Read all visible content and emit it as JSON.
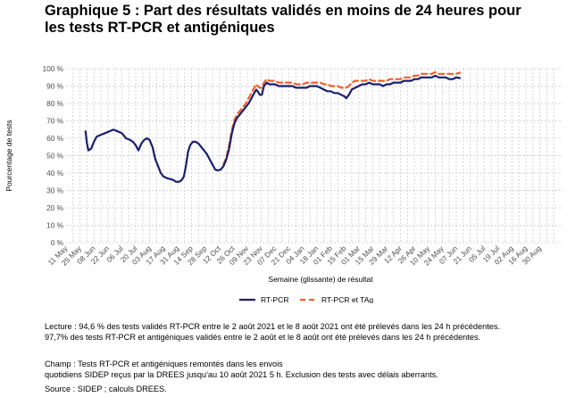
{
  "title_lines": [
    "Graphique 5 : Part des résultats validés en moins de 24 heures pour",
    "les tests RT-PCR et antigéniques"
  ],
  "notes": {
    "lecture": [
      "Lecture : 94,6 % des tests validés RT-PCR entre le 2 août 2021 et le 8 août 2021 ont été prélevés dans les 24 h précédentes.",
      "97,7% des tests RT-PCR et antigéniques validés entre le 2 août et le 8 août ont été prélevés dans les 24 h précédentes."
    ],
    "champ": [
      "Champ : Tests RT-PCR et antigéniques remontés dans les envois",
      "quotidiens SIDEP reçus par la DREES jusqu'au 10 août 2021 5 h. Exclusion des tests avec délais aberrants."
    ],
    "source": "Source : SIDEP ; calculs DREES."
  },
  "colors": {
    "rtpcr": "#1a1f6e",
    "rtpcr_tag": "#f0602b",
    "grid": "#d4d4d4"
  },
  "chart_data": {
    "type": "line",
    "xlabel": "Semaine (glissante) de résultat",
    "ylabel": "Pourcentage de tests",
    "ylim": [
      0,
      100
    ],
    "y_ticks": [
      "0 %",
      "10 %",
      "20 %",
      "30 %",
      "40 %",
      "50 %",
      "60 %",
      "70 %",
      "80 %",
      "90 %",
      "100 %"
    ],
    "x_ticks": [
      "11 May",
      "25 May",
      "08 Jun",
      "22 Jun",
      "06 Jul",
      "20 Jul",
      "03 Aug",
      "17 Aug",
      "31 Aug",
      "14 Sep",
      "28 Sep",
      "12 Oct",
      "26 Oct",
      "09 Nov",
      "23 Nov",
      "07 Dec",
      "21 Dec",
      "04 Jan",
      "18 Jan",
      "01 Feb",
      "15 Feb",
      "01 Mar",
      "15 Mar",
      "29 Mar",
      "12 Apr",
      "26 Apr",
      "10 May",
      "24 May",
      "07 Jun",
      "21 Jun",
      "05 Jul",
      "19 Jul",
      "02 Aug",
      "16 Aug",
      "30 Aug"
    ],
    "x_unit": "weeks since 11 May 2020 (tick i = 2*i weeks)",
    "grid": true,
    "legend_position": "bottom",
    "series": [
      {
        "name": "RT-PCR",
        "points": [
          [
            2.8,
            64
          ],
          [
            3.0,
            57
          ],
          [
            3.2,
            53
          ],
          [
            3.6,
            54
          ],
          [
            4.0,
            58
          ],
          [
            4.4,
            61
          ],
          [
            5.0,
            62
          ],
          [
            5.6,
            63
          ],
          [
            6.2,
            64
          ],
          [
            6.8,
            65
          ],
          [
            7.4,
            64
          ],
          [
            8.0,
            63
          ],
          [
            8.6,
            60
          ],
          [
            9.2,
            59
          ],
          [
            9.6,
            58
          ],
          [
            10.0,
            56
          ],
          [
            10.4,
            53
          ],
          [
            10.8,
            57
          ],
          [
            11.2,
            59
          ],
          [
            11.6,
            60
          ],
          [
            12.0,
            59
          ],
          [
            12.4,
            55
          ],
          [
            12.8,
            48
          ],
          [
            13.2,
            44
          ],
          [
            13.6,
            40
          ],
          [
            14.0,
            38
          ],
          [
            14.5,
            37
          ],
          [
            15.0,
            36.5
          ],
          [
            15.4,
            36
          ],
          [
            15.8,
            35
          ],
          [
            16.2,
            35
          ],
          [
            16.6,
            36
          ],
          [
            16.9,
            38
          ],
          [
            17.2,
            44
          ],
          [
            17.5,
            52
          ],
          [
            17.8,
            56
          ],
          [
            18.2,
            58
          ],
          [
            18.6,
            58
          ],
          [
            19.0,
            57
          ],
          [
            19.4,
            55
          ],
          [
            19.8,
            53
          ],
          [
            20.2,
            51
          ],
          [
            20.6,
            48
          ],
          [
            21.0,
            45
          ],
          [
            21.4,
            42
          ],
          [
            21.8,
            41.5
          ],
          [
            22.2,
            42
          ],
          [
            22.6,
            44
          ],
          [
            23.0,
            48
          ],
          [
            23.4,
            54
          ],
          [
            23.8,
            63
          ],
          [
            24.2,
            69
          ],
          [
            24.6,
            72
          ],
          [
            25.0,
            74
          ],
          [
            25.4,
            76
          ],
          [
            25.8,
            78
          ],
          [
            26.2,
            80
          ],
          [
            26.6,
            83
          ],
          [
            27.0,
            86
          ],
          [
            27.3,
            88
          ],
          [
            27.5,
            87
          ],
          [
            27.8,
            85
          ],
          [
            28.1,
            85
          ],
          [
            28.4,
            90
          ],
          [
            28.8,
            92
          ],
          [
            29.2,
            91
          ],
          [
            29.6,
            91
          ],
          [
            30.0,
            91
          ],
          [
            30.5,
            90
          ],
          [
            31.0,
            90
          ],
          [
            31.5,
            90
          ],
          [
            32.0,
            90
          ],
          [
            32.5,
            90
          ],
          [
            33.0,
            89
          ],
          [
            33.5,
            89
          ],
          [
            34.0,
            89
          ],
          [
            34.5,
            89
          ],
          [
            35.0,
            90
          ],
          [
            35.5,
            90
          ],
          [
            36.0,
            90
          ],
          [
            36.5,
            89
          ],
          [
            37.0,
            88
          ],
          [
            37.5,
            87
          ],
          [
            38.0,
            87
          ],
          [
            38.5,
            86
          ],
          [
            39.0,
            86
          ],
          [
            39.5,
            85
          ],
          [
            40.0,
            84
          ],
          [
            40.2,
            83
          ],
          [
            40.6,
            85
          ],
          [
            41.0,
            88
          ],
          [
            41.5,
            89
          ],
          [
            42.0,
            90
          ],
          [
            42.5,
            91
          ],
          [
            43.0,
            91
          ],
          [
            43.5,
            92
          ],
          [
            44.0,
            91
          ],
          [
            44.5,
            91
          ],
          [
            45.0,
            91
          ],
          [
            45.5,
            90
          ],
          [
            46.0,
            91
          ],
          [
            46.5,
            91
          ],
          [
            47.0,
            92
          ],
          [
            47.5,
            92
          ],
          [
            48.0,
            92
          ],
          [
            48.5,
            93
          ],
          [
            49.0,
            93
          ],
          [
            49.5,
            93
          ],
          [
            50.0,
            94
          ],
          [
            50.5,
            94
          ],
          [
            51.0,
            95
          ],
          [
            51.5,
            95
          ],
          [
            52.0,
            95
          ],
          [
            52.5,
            95
          ],
          [
            53.0,
            96
          ],
          [
            53.5,
            95
          ],
          [
            54.0,
            95
          ],
          [
            54.5,
            95
          ],
          [
            55.0,
            94
          ],
          [
            55.5,
            94
          ],
          [
            56.0,
            95
          ],
          [
            56.5,
            94.6
          ]
        ]
      },
      {
        "name": "RT-PCR et TAg",
        "points": [
          [
            22.6,
            45
          ],
          [
            23.0,
            49
          ],
          [
            23.4,
            56
          ],
          [
            23.8,
            65
          ],
          [
            24.2,
            71
          ],
          [
            24.6,
            74
          ],
          [
            25.0,
            76
          ],
          [
            25.4,
            78
          ],
          [
            25.8,
            80
          ],
          [
            26.2,
            83
          ],
          [
            26.6,
            86
          ],
          [
            27.0,
            89
          ],
          [
            27.3,
            91
          ],
          [
            27.5,
            90
          ],
          [
            27.8,
            89
          ],
          [
            28.1,
            89
          ],
          [
            28.4,
            92
          ],
          [
            28.8,
            94
          ],
          [
            29.2,
            93
          ],
          [
            29.6,
            93
          ],
          [
            30.0,
            93
          ],
          [
            30.5,
            92
          ],
          [
            31.0,
            92
          ],
          [
            31.5,
            92
          ],
          [
            32.0,
            92
          ],
          [
            32.5,
            92
          ],
          [
            33.0,
            91
          ],
          [
            33.5,
            91
          ],
          [
            34.0,
            91
          ],
          [
            34.5,
            92
          ],
          [
            35.0,
            92
          ],
          [
            35.5,
            92
          ],
          [
            36.0,
            92
          ],
          [
            36.5,
            92
          ],
          [
            37.0,
            91
          ],
          [
            37.5,
            91
          ],
          [
            38.0,
            90
          ],
          [
            38.5,
            90
          ],
          [
            39.0,
            90
          ],
          [
            39.5,
            89
          ],
          [
            40.0,
            89
          ],
          [
            40.2,
            89
          ],
          [
            40.6,
            90
          ],
          [
            41.0,
            92
          ],
          [
            41.5,
            93
          ],
          [
            42.0,
            93
          ],
          [
            42.5,
            93
          ],
          [
            43.0,
            93
          ],
          [
            43.5,
            94
          ],
          [
            44.0,
            93
          ],
          [
            44.5,
            93
          ],
          [
            45.0,
            93
          ],
          [
            45.5,
            93
          ],
          [
            46.0,
            93
          ],
          [
            46.5,
            94
          ],
          [
            47.0,
            94
          ],
          [
            47.5,
            94
          ],
          [
            48.0,
            94
          ],
          [
            48.5,
            95
          ],
          [
            49.0,
            95
          ],
          [
            49.5,
            95
          ],
          [
            50.0,
            96
          ],
          [
            50.5,
            96
          ],
          [
            51.0,
            97
          ],
          [
            51.5,
            97
          ],
          [
            52.0,
            97
          ],
          [
            52.5,
            97
          ],
          [
            53.0,
            98
          ],
          [
            53.5,
            97
          ],
          [
            54.0,
            97
          ],
          [
            54.5,
            97
          ],
          [
            55.0,
            97
          ],
          [
            55.5,
            97
          ],
          [
            56.0,
            97
          ],
          [
            56.5,
            97.7
          ]
        ]
      }
    ]
  }
}
